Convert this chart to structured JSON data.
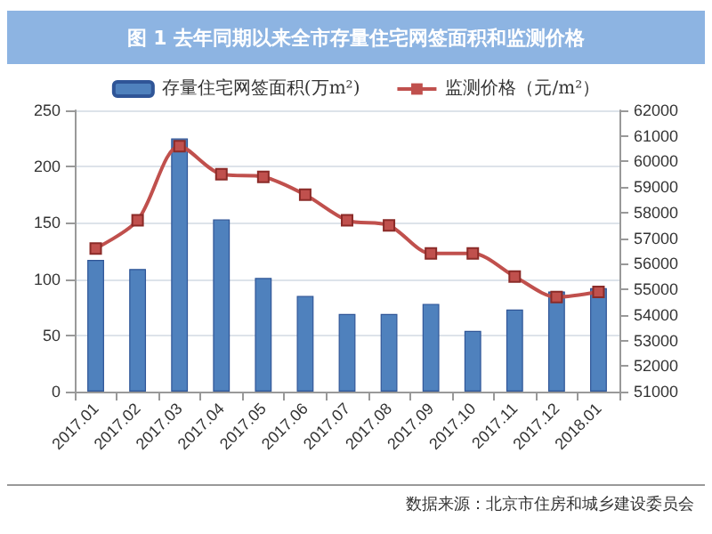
{
  "chart_data": {
    "type": "bar",
    "title": "图 1  去年同期以来全市存量住宅网签面积和监测价格",
    "categories": [
      "2017.01",
      "2017.02",
      "2017.03",
      "2017.04",
      "2017.05",
      "2017.06",
      "2017.07",
      "2017.08",
      "2017.09",
      "2017.10",
      "2017.11",
      "2017.12",
      "2018.01"
    ],
    "series": [
      {
        "name": "存量住宅网签面积(万m²)",
        "color": "#4f81bd",
        "values": [
          117,
          109,
          225,
          153,
          101,
          85,
          69,
          69,
          78,
          54,
          73,
          89,
          92
        ]
      },
      {
        "name": "监测价格（元/m²）",
        "type": "line",
        "axis": "y2",
        "color": "#c0504d",
        "marker": "square",
        "values": [
          56600,
          57700,
          60600,
          59500,
          59400,
          58700,
          57700,
          57500,
          56400,
          56400,
          55500,
          54700,
          54900
        ]
      }
    ],
    "ylim": [
      0,
      250
    ],
    "yticks": [
      0,
      50,
      100,
      150,
      200,
      250
    ],
    "y2lim": [
      51000,
      62000
    ],
    "y2ticks": [
      51000,
      52000,
      53000,
      54000,
      55000,
      56000,
      57000,
      58000,
      59000,
      60000,
      61000,
      62000
    ],
    "grid": "y",
    "legend": "top",
    "annotations": [
      "数据来源：北京市住房和城乡建设委员会"
    ]
  }
}
